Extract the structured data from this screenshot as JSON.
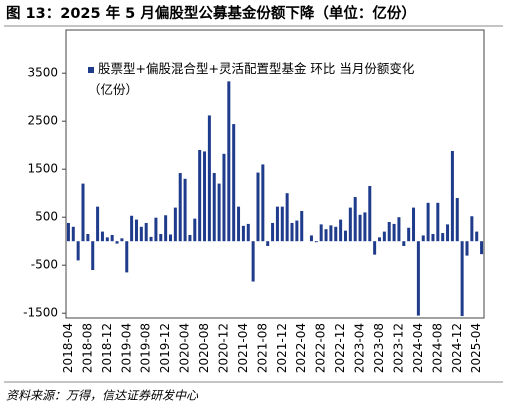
{
  "chart_data": {
    "type": "bar",
    "title": "图 13：2025 年 5 月偏股型公募基金份额下降（单位：亿份）",
    "source": "资料来源：万得，信达证券研发中心",
    "categories": [
      "2018-04",
      null,
      null,
      null,
      "2018-08",
      null,
      null,
      null,
      "2018-12",
      null,
      null,
      null,
      "2019-04",
      null,
      null,
      null,
      "2019-08",
      null,
      null,
      null,
      "2019-12",
      null,
      null,
      null,
      "2020-04",
      null,
      null,
      null,
      "2020-08",
      null,
      null,
      null,
      "2020-12",
      null,
      null,
      null,
      "2021-04",
      null,
      null,
      null,
      "2021-08",
      null,
      null,
      null,
      "2021-12",
      null,
      null,
      null,
      "2022-04",
      null,
      null,
      null,
      "2022-08",
      null,
      null,
      null,
      "2022-12",
      null,
      null,
      null,
      "2023-04",
      null,
      null,
      null,
      "2023-08",
      null,
      null,
      null,
      "2023-12",
      null,
      null,
      null,
      "2024-04",
      null,
      null,
      null,
      "2024-08",
      null,
      null,
      null,
      "2024-12",
      null,
      null,
      null,
      "2025-04",
      null
    ],
    "series": [
      {
        "name": "股票型+偏股混合型+灵活配置型基金 环比 当月份额变化（亿份）",
        "color": "#1f3b8c",
        "values": [
          380,
          300,
          -400,
          1200,
          150,
          -600,
          720,
          200,
          80,
          130,
          -50,
          60,
          -650,
          530,
          450,
          300,
          380,
          90,
          490,
          150,
          540,
          140,
          700,
          1420,
          1300,
          130,
          470,
          1900,
          1870,
          2620,
          1420,
          1200,
          1820,
          3330,
          2440,
          720,
          320,
          360,
          -840,
          1430,
          1600,
          -100,
          380,
          720,
          720,
          1000,
          380,
          430,
          630,
          0,
          120,
          -20,
          350,
          250,
          330,
          300,
          450,
          220,
          700,
          920,
          550,
          600,
          1150,
          -280,
          80,
          200,
          400,
          360,
          500,
          -100,
          280,
          700,
          -1550,
          120,
          800,
          150,
          800,
          170,
          350,
          1880,
          900,
          -1560,
          -300,
          520,
          200,
          -270
        ]
      }
    ],
    "ylim": [
      -1600,
      4400
    ],
    "yticks": [
      -1500,
      -500,
      500,
      1500,
      2500,
      3500
    ],
    "grid": false
  }
}
